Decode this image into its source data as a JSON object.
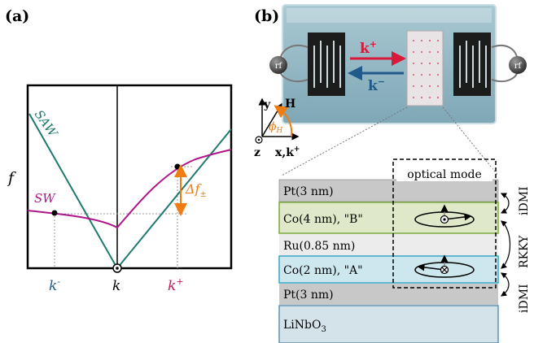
{
  "panel_a": {
    "label": "(a)",
    "y_axis_label": "f",
    "x_ticks": {
      "k_minus": "k",
      "k_minus_sup": "-",
      "k": "k",
      "k_plus": "k",
      "k_plus_sup": "+"
    },
    "curve_labels": {
      "saw": "SAW",
      "sw": "SW"
    },
    "delta_f": {
      "main": "Δf",
      "sub": "±"
    },
    "colors": {
      "saw": "#1e7a6e",
      "sw": "#b0168a",
      "orange": "#ef7d11",
      "k_minus": "#1f5a8a",
      "k_plus": "#c0185a"
    }
  },
  "panel_b": {
    "label": "(b)",
    "rf_left": "rf",
    "rf_right": "rf",
    "k_plus": {
      "main": "k",
      "sup": "+"
    },
    "k_minus": {
      "main": "k",
      "sup": "−"
    },
    "axes": {
      "y": "y",
      "H": "H",
      "phi": "ϕ",
      "phi_sub": "H",
      "z": "z",
      "x": "x,k",
      "x_sup": "+"
    },
    "optical_mode": "optical mode",
    "layers": [
      {
        "label": "Pt(3 nm)",
        "color": "#c8c8c8"
      },
      {
        "label": "Co(4 nm), \"B\"",
        "color": "#dfe9c9",
        "border": "#79a83d"
      },
      {
        "label": "Ru(0.85 nm)",
        "color": "#ececec"
      },
      {
        "label": "Co(2 nm), \"A\"",
        "color": "#cde7ee",
        "border": "#36a5c2"
      },
      {
        "label": "Pt(3 nm)",
        "color": "#c8c8c8"
      },
      {
        "label": "LiNbO",
        "sub": "3",
        "color": "#d4e2ea",
        "border": "#5f93b3"
      }
    ],
    "side_labels": [
      "iDMI",
      "RKKY",
      "iDMI"
    ]
  }
}
